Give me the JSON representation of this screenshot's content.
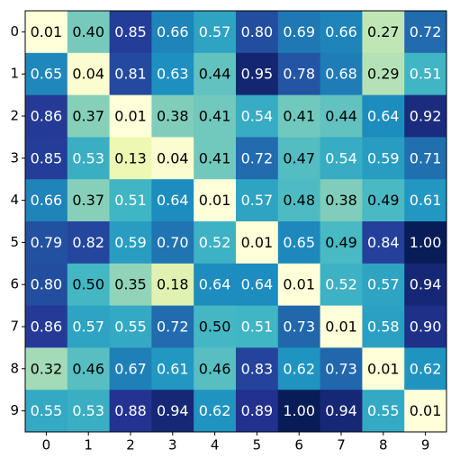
{
  "chart_data": {
    "type": "heatmap",
    "colormap": "YlGnBu",
    "x": [
      0,
      1,
      2,
      3,
      4,
      5,
      6,
      7,
      8,
      9
    ],
    "y": [
      0,
      1,
      2,
      3,
      4,
      5,
      6,
      7,
      8,
      9
    ],
    "values": [
      [
        0.01,
        0.4,
        0.85,
        0.66,
        0.57,
        0.8,
        0.69,
        0.66,
        0.27,
        0.72
      ],
      [
        0.65,
        0.04,
        0.81,
        0.63,
        0.44,
        0.95,
        0.78,
        0.68,
        0.29,
        0.51
      ],
      [
        0.86,
        0.37,
        0.01,
        0.38,
        0.41,
        0.54,
        0.41,
        0.44,
        0.64,
        0.92
      ],
      [
        0.85,
        0.53,
        0.13,
        0.04,
        0.41,
        0.72,
        0.47,
        0.54,
        0.59,
        0.71
      ],
      [
        0.66,
        0.37,
        0.51,
        0.64,
        0.01,
        0.57,
        0.48,
        0.38,
        0.49,
        0.61
      ],
      [
        0.79,
        0.82,
        0.59,
        0.7,
        0.52,
        0.01,
        0.65,
        0.49,
        0.84,
        1.0
      ],
      [
        0.8,
        0.5,
        0.35,
        0.18,
        0.64,
        0.64,
        0.01,
        0.52,
        0.57,
        0.94
      ],
      [
        0.86,
        0.57,
        0.55,
        0.72,
        0.5,
        0.51,
        0.73,
        0.01,
        0.58,
        0.9
      ],
      [
        0.32,
        0.46,
        0.67,
        0.61,
        0.46,
        0.83,
        0.62,
        0.73,
        0.01,
        0.62
      ],
      [
        0.55,
        0.53,
        0.88,
        0.94,
        0.62,
        0.89,
        1.0,
        0.94,
        0.55,
        0.01
      ]
    ],
    "value_labels": [
      [
        "0.01",
        "0.40",
        "0.85",
        "0.66",
        "0.57",
        "0.80",
        "0.69",
        "0.66",
        "0.27",
        "0.72"
      ],
      [
        "0.65",
        "0.04",
        "0.81",
        "0.63",
        "0.44",
        "0.95",
        "0.78",
        "0.68",
        "0.29",
        "0.51"
      ],
      [
        "0.86",
        "0.37",
        "0.01",
        "0.38",
        "0.41",
        "0.54",
        "0.41",
        "0.44",
        "0.64",
        "0.92"
      ],
      [
        "0.85",
        "0.53",
        "0.13",
        "0.04",
        "0.41",
        "0.72",
        "0.47",
        "0.54",
        "0.59",
        "0.71"
      ],
      [
        "0.66",
        "0.37",
        "0.51",
        "0.64",
        "0.01",
        "0.57",
        "0.48",
        "0.38",
        "0.49",
        "0.61"
      ],
      [
        "0.79",
        "0.82",
        "0.59",
        "0.70",
        "0.52",
        "0.01",
        "0.65",
        "0.49",
        "0.84",
        "1.00"
      ],
      [
        "0.80",
        "0.50",
        "0.35",
        "0.18",
        "0.64",
        "0.64",
        "0.01",
        "0.52",
        "0.57",
        "0.94"
      ],
      [
        "0.86",
        "0.57",
        "0.55",
        "0.72",
        "0.50",
        "0.51",
        "0.73",
        "0.01",
        "0.58",
        "0.90"
      ],
      [
        "0.32",
        "0.46",
        "0.67",
        "0.61",
        "0.46",
        "0.83",
        "0.62",
        "0.73",
        "0.01",
        "0.62"
      ],
      [
        "0.55",
        "0.53",
        "0.88",
        "0.94",
        "0.62",
        "0.89",
        "1.00",
        "0.94",
        "0.55",
        "0.01"
      ]
    ]
  }
}
